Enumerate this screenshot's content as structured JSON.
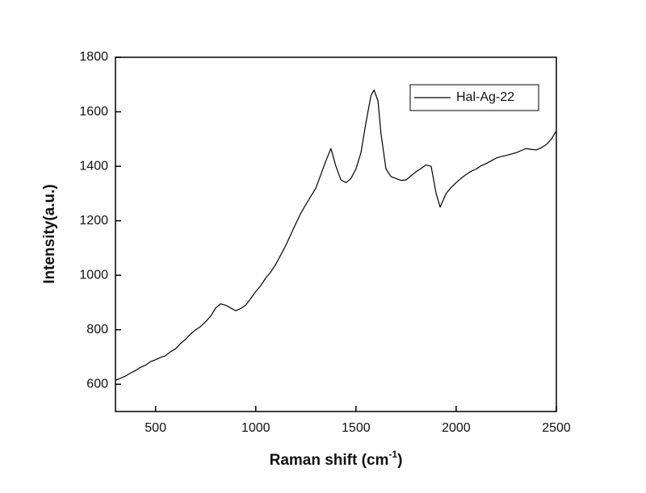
{
  "chart_data": {
    "type": "line",
    "xlabel": {
      "text": "Raman shift (cm",
      "superscript": "-1",
      "suffix": ")"
    },
    "ylabel": "Intensity(a.u.)",
    "x": [
      300,
      325,
      350,
      375,
      400,
      425,
      450,
      475,
      500,
      525,
      550,
      575,
      600,
      625,
      650,
      675,
      700,
      725,
      750,
      775,
      800,
      825,
      850,
      875,
      900,
      925,
      950,
      975,
      1000,
      1025,
      1050,
      1075,
      1100,
      1125,
      1150,
      1175,
      1200,
      1225,
      1250,
      1275,
      1300,
      1325,
      1350,
      1375,
      1400,
      1425,
      1450,
      1475,
      1500,
      1525,
      1550,
      1575,
      1590,
      1610,
      1625,
      1650,
      1675,
      1700,
      1725,
      1750,
      1775,
      1800,
      1825,
      1850,
      1875,
      1900,
      1920,
      1950,
      1975,
      2000,
      2025,
      2050,
      2075,
      2100,
      2125,
      2150,
      2175,
      2200,
      2225,
      2250,
      2275,
      2300,
      2325,
      2350,
      2375,
      2400,
      2425,
      2450,
      2475,
      2500
    ],
    "series": [
      {
        "name": "Hal-Ag-22",
        "color": "#000000",
        "values": [
          615,
          622,
          630,
          641,
          650,
          662,
          670,
          683,
          690,
          698,
          705,
          720,
          730,
          750,
          765,
          785,
          800,
          812,
          830,
          850,
          880,
          895,
          890,
          880,
          870,
          878,
          890,
          915,
          940,
          962,
          990,
          1012,
          1040,
          1075,
          1110,
          1150,
          1190,
          1228,
          1260,
          1290,
          1320,
          1370,
          1420,
          1465,
          1400,
          1350,
          1340,
          1355,
          1390,
          1450,
          1560,
          1660,
          1680,
          1640,
          1520,
          1390,
          1362,
          1355,
          1348,
          1350,
          1365,
          1380,
          1392,
          1405,
          1400,
          1300,
          1250,
          1300,
          1322,
          1340,
          1356,
          1370,
          1382,
          1390,
          1402,
          1410,
          1420,
          1430,
          1436,
          1440,
          1445,
          1450,
          1458,
          1465,
          1462,
          1460,
          1468,
          1480,
          1500,
          1530
        ]
      }
    ],
    "xlim": [
      300,
      2500
    ],
    "xticks": [
      500,
      1000,
      1500,
      2000,
      2500
    ],
    "ylim": [
      500,
      1800
    ],
    "yticks": [
      600,
      800,
      1000,
      1200,
      1400,
      1600,
      1800
    ],
    "legend": "top-right"
  }
}
